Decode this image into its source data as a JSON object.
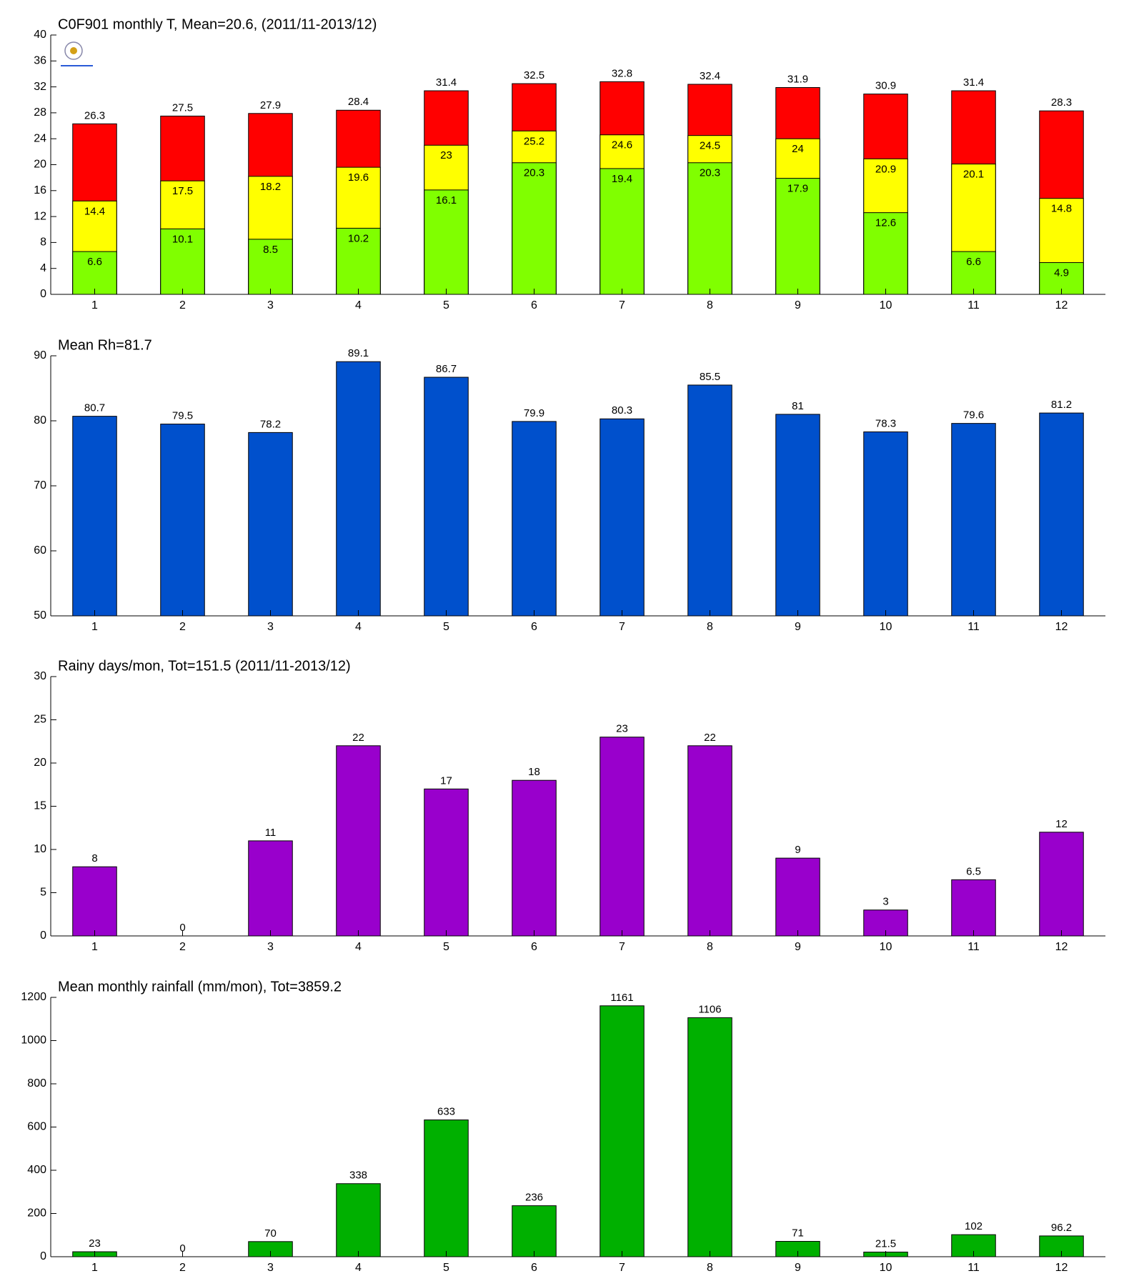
{
  "chart_data": [
    {
      "type": "bar",
      "title": "C0F901 monthly T, Mean=20.6, (2011/11-2013/12)",
      "categories": [
        1,
        2,
        3,
        4,
        5,
        6,
        7,
        8,
        9,
        10,
        11,
        12
      ],
      "overlap": true,
      "series": [
        {
          "color": "#ff0000",
          "values": [
            26.3,
            27.5,
            27.9,
            28.4,
            31.4,
            32.5,
            32.8,
            32.4,
            31.9,
            30.9,
            31.4,
            28.3
          ]
        },
        {
          "color": "#ffff00",
          "values": [
            14.4,
            17.5,
            18.2,
            19.6,
            23,
            25.2,
            24.6,
            24.5,
            24,
            20.9,
            20.1,
            14.8
          ]
        },
        {
          "color": "#80ff00",
          "values": [
            6.6,
            10.1,
            8.5,
            10.2,
            16.1,
            20.3,
            19.4,
            20.3,
            17.9,
            12.6,
            6.6,
            4.9
          ]
        }
      ],
      "ylim": [
        0,
        40
      ],
      "yticks": [
        0,
        4,
        8,
        12,
        16,
        20,
        24,
        28,
        32,
        36,
        40
      ]
    },
    {
      "type": "bar",
      "title": "Mean Rh=81.7",
      "categories": [
        1,
        2,
        3,
        4,
        5,
        6,
        7,
        8,
        9,
        10,
        11,
        12
      ],
      "values": [
        80.7,
        79.5,
        78.2,
        89.1,
        86.7,
        79.9,
        80.3,
        85.5,
        81,
        78.3,
        79.6,
        81.2
      ],
      "color": "#0050cc",
      "ylim": [
        50,
        90
      ],
      "yticks": [
        50,
        60,
        70,
        80,
        90
      ]
    },
    {
      "type": "bar",
      "title": "Rainy days/mon, Tot=151.5 (2011/11-2013/12)",
      "categories": [
        1,
        2,
        3,
        4,
        5,
        6,
        7,
        8,
        9,
        10,
        11,
        12
      ],
      "values": [
        8,
        0,
        11,
        22,
        17,
        18,
        23,
        22,
        9,
        3,
        6.5,
        12
      ],
      "color": "#9900cc",
      "ylim": [
        0,
        30
      ],
      "yticks": [
        0,
        5,
        10,
        15,
        20,
        25,
        30
      ]
    },
    {
      "type": "bar",
      "title": "Mean monthly rainfall (mm/mon), Tot=3859.2",
      "categories": [
        1,
        2,
        3,
        4,
        5,
        6,
        7,
        8,
        9,
        10,
        11,
        12
      ],
      "values": [
        23,
        0,
        70,
        338,
        633,
        236,
        1161,
        1106,
        71,
        21.5,
        102,
        96.2
      ],
      "color": "#00b000",
      "ylim": [
        0,
        1200
      ],
      "yticks": [
        0,
        200,
        400,
        600,
        800,
        1000,
        1200
      ]
    }
  ]
}
